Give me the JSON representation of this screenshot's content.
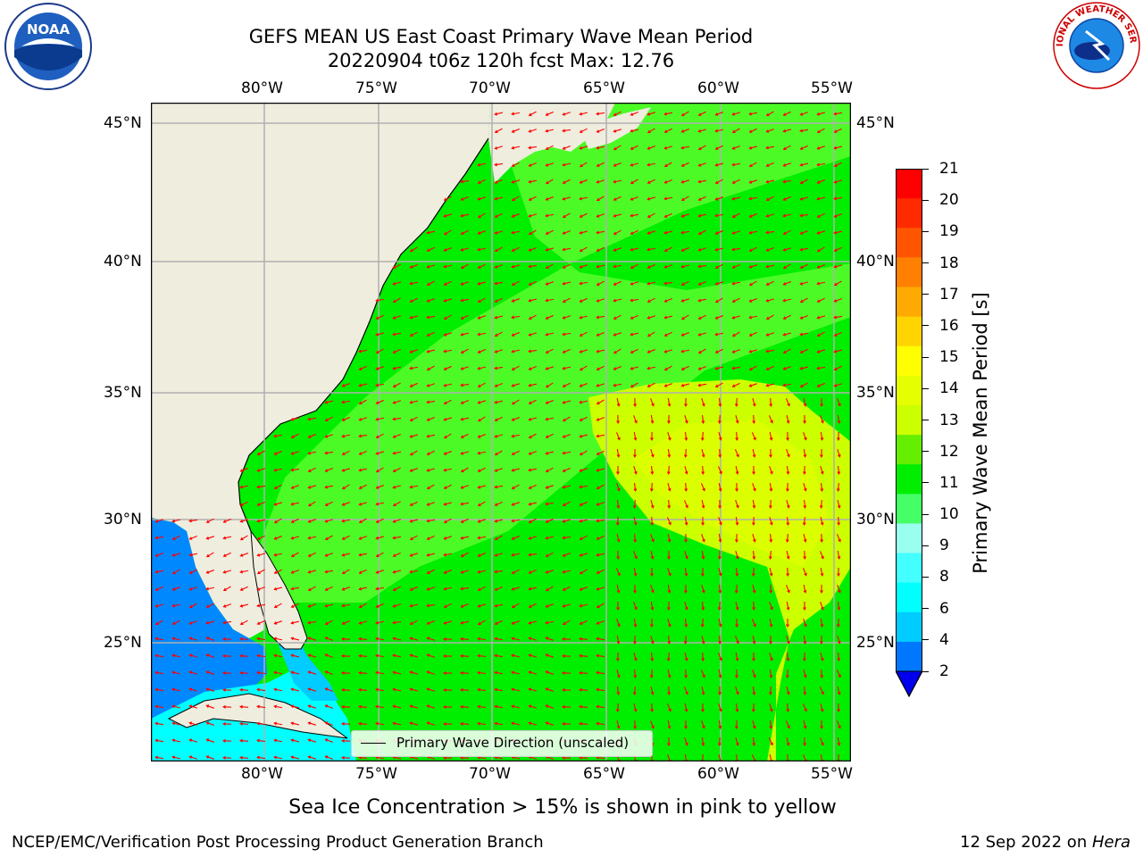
{
  "title": {
    "line1": "GEFS MEAN US East Coast Primary Wave Mean Period",
    "line2": "20220904 t06z 120h fcst   Max: 12.76"
  },
  "map": {
    "lon_labels": [
      "80°W",
      "75°W",
      "70°W",
      "65°W",
      "60°W",
      "55°W"
    ],
    "lat_labels": [
      "45°N",
      "40°N",
      "35°N",
      "30°N",
      "25°N"
    ],
    "legend_label": "Primary Wave Direction (unscaled)",
    "colors": {
      "land": "#efedde",
      "ocean_main": "#00ee00",
      "ocean_light": "#66ff33",
      "swell_yellow": "#ccff00",
      "gulf_blue": "#0088ff",
      "gulf_cyan": "#00ffff",
      "arrow": "#ff0000",
      "grid": "#b0b0b0"
    }
  },
  "colorbar": {
    "label": "Primary Wave Mean Period [s]",
    "ticks": [
      "21",
      "20",
      "19",
      "18",
      "17",
      "16",
      "15",
      "14",
      "13",
      "12",
      "11",
      "10",
      "9",
      "8",
      "6",
      "4",
      "2"
    ],
    "colors": [
      "#ff0000",
      "#ff2a00",
      "#ff5500",
      "#ff8000",
      "#ffaa00",
      "#ffd400",
      "#ffff00",
      "#e5ff00",
      "#ccff00",
      "#66ee00",
      "#00ee00",
      "#44ff66",
      "#99ffee",
      "#44ffff",
      "#00ffff",
      "#00ccff",
      "#0077ff"
    ],
    "extend_color": "#0000ee"
  },
  "logos": {
    "noaa_text": "NOAA",
    "nws_text": "NATIONAL WEATHER SERVICE"
  },
  "footer": {
    "sea_ice_note": "Sea Ice Concentration > 15% is shown in pink to yellow",
    "branch": "NCEP/EMC/Verification Post Processing Product Generation Branch",
    "date_prefix": "12 Sep 2022 on ",
    "machine": "Hera"
  }
}
